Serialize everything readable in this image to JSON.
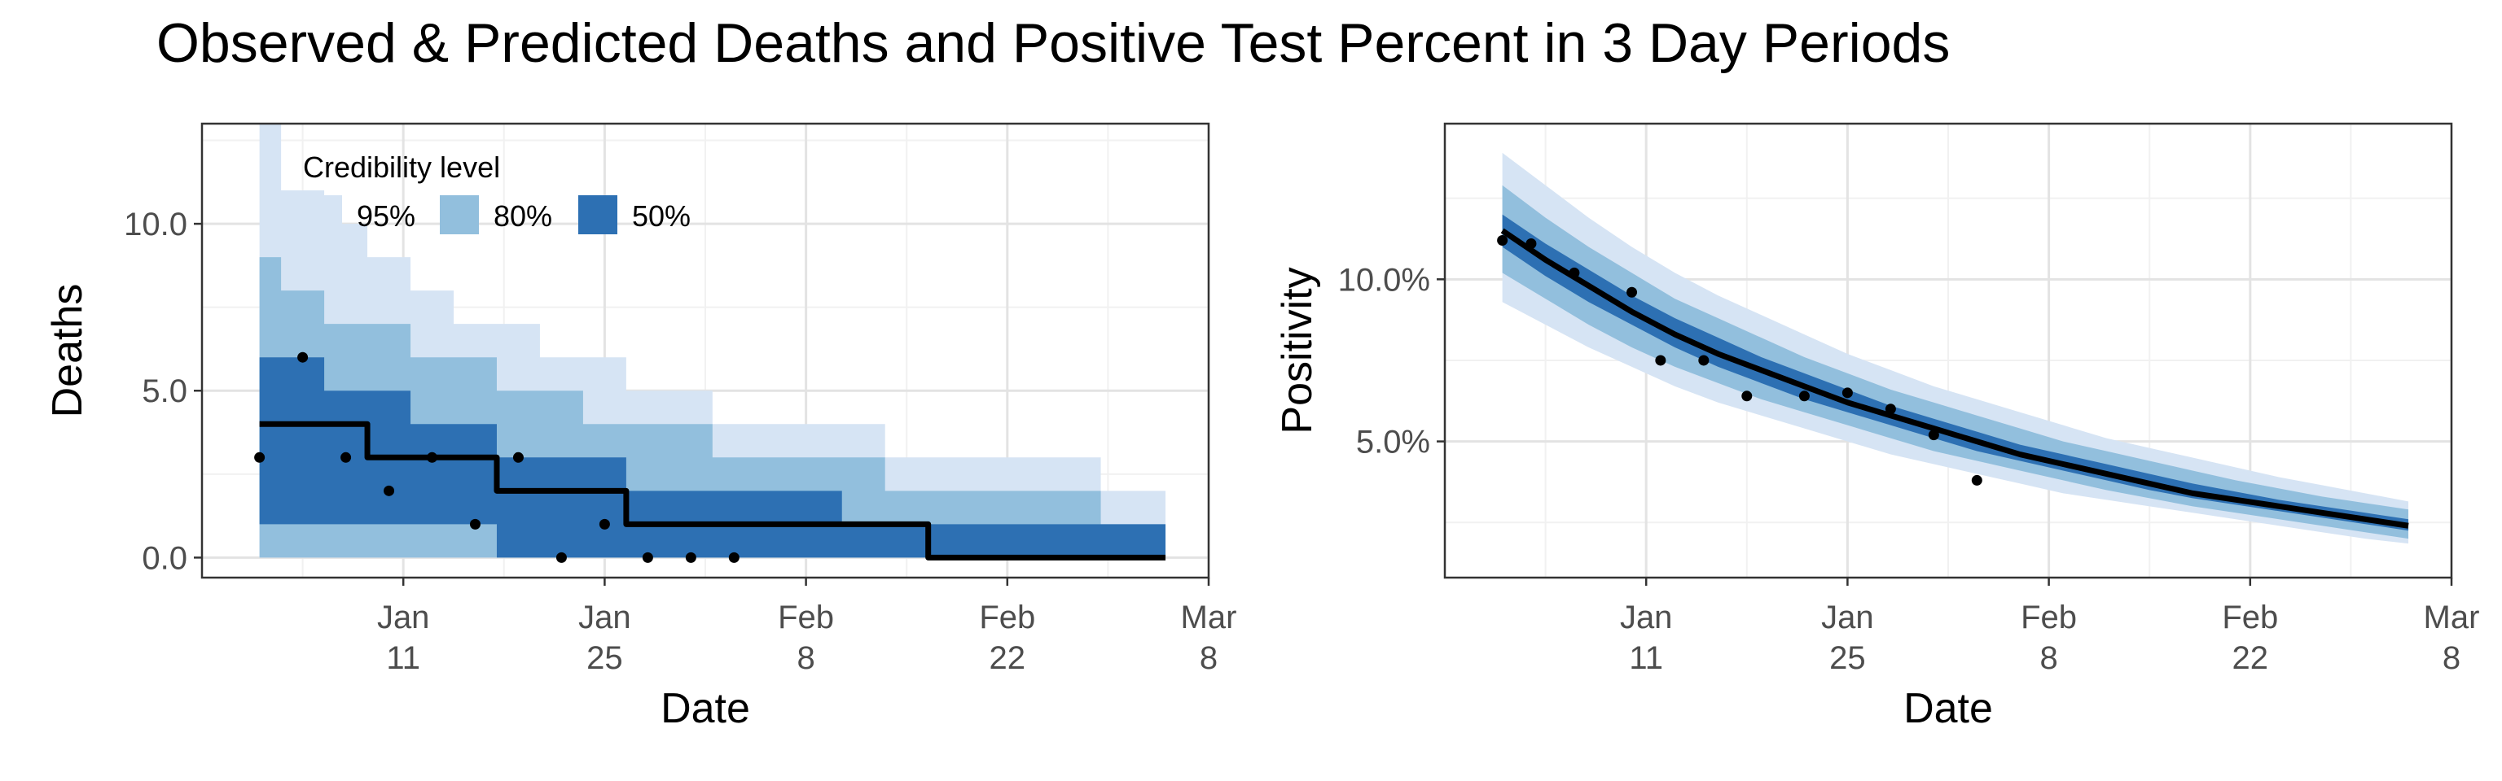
{
  "title": "Observed & Predicted Deaths and Positive Test Percent in 3 Day Periods",
  "colors": {
    "band95": "#d6e4f4",
    "band80": "#92bfdd",
    "band50": "#2d70b3",
    "line": "#000000",
    "point": "#000000",
    "grid_major": "#e3e3e3",
    "grid_minor": "#f1f1f1",
    "panel_border": "#333333"
  },
  "chart_data": [
    {
      "type": "area",
      "xlabel": "Date",
      "ylabel": "Deaths",
      "x_unit": "date",
      "xlim": [
        "2020-12-28",
        "2021-03-08"
      ],
      "ylim": [
        -0.6,
        13.0
      ],
      "grid": true,
      "x_ticks": [
        {
          "x": "2021-01-11",
          "line1": "Jan",
          "line2": "11"
        },
        {
          "x": "2021-01-25",
          "line1": "Jan",
          "line2": "25"
        },
        {
          "x": "2021-02-08",
          "line1": "Feb",
          "line2": "8"
        },
        {
          "x": "2021-02-22",
          "line1": "Feb",
          "line2": "22"
        },
        {
          "x": "2021-03-08",
          "line1": "Mar",
          "line2": "8"
        }
      ],
      "y_ticks": [
        0,
        5,
        10
      ],
      "y_tick_labels": [
        "0.0",
        "5.0",
        "10.0"
      ],
      "legend": {
        "title": "Credibility level",
        "placement": "top-left",
        "entries": [
          {
            "label": "95%",
            "band": "band95"
          },
          {
            "label": "80%",
            "band": "band80"
          },
          {
            "label": "50%",
            "band": "band50"
          }
        ]
      },
      "step": true,
      "x": [
        "2021-01-01",
        "2021-01-04",
        "2021-01-07",
        "2021-01-10",
        "2021-01-13",
        "2021-01-16",
        "2021-01-19",
        "2021-01-22",
        "2021-01-25",
        "2021-01-28",
        "2021-01-31",
        "2021-02-03",
        "2021-02-06",
        "2021-02-09",
        "2021-02-12",
        "2021-02-15",
        "2021-02-18",
        "2021-02-21",
        "2021-02-24",
        "2021-02-27",
        "2021-03-02",
        "2021-03-05"
      ],
      "median": [
        4,
        4,
        4,
        3,
        3,
        3,
        2,
        2,
        2,
        1,
        1,
        1,
        1,
        1,
        1,
        1,
        0,
        0,
        0,
        0,
        0,
        0
      ],
      "lo50": [
        1,
        1,
        1,
        1,
        1,
        1,
        0,
        0,
        0,
        0,
        0,
        0,
        0,
        0,
        0,
        0,
        0,
        0,
        0,
        0,
        0,
        0
      ],
      "hi50": [
        6,
        6,
        5,
        5,
        4,
        4,
        3,
        3,
        3,
        2,
        2,
        2,
        2,
        2,
        1,
        1,
        1,
        1,
        1,
        1,
        1,
        1
      ],
      "lo80": [
        0,
        0,
        0,
        0,
        0,
        0,
        0,
        0,
        0,
        0,
        0,
        0,
        0,
        0,
        0,
        0,
        0,
        0,
        0,
        0,
        0,
        0
      ],
      "hi80": [
        9,
        8,
        7,
        7,
        6,
        6,
        5,
        5,
        4,
        4,
        4,
        3,
        3,
        3,
        3,
        2,
        2,
        2,
        2,
        2,
        1,
        1
      ],
      "lo95": [
        0,
        0,
        0,
        0,
        0,
        0,
        0,
        0,
        0,
        0,
        0,
        0,
        0,
        0,
        0,
        0,
        0,
        0,
        0,
        0,
        0,
        0
      ],
      "hi95": [
        13,
        11,
        10,
        9,
        8,
        7,
        7,
        6,
        6,
        5,
        5,
        4,
        4,
        4,
        4,
        3,
        3,
        3,
        3,
        3,
        2,
        2
      ],
      "observed": [
        {
          "x": "2021-01-01",
          "y": 3
        },
        {
          "x": "2021-01-04",
          "y": 6
        },
        {
          "x": "2021-01-07",
          "y": 3
        },
        {
          "x": "2021-01-10",
          "y": 2
        },
        {
          "x": "2021-01-13",
          "y": 3
        },
        {
          "x": "2021-01-16",
          "y": 1
        },
        {
          "x": "2021-01-19",
          "y": 3
        },
        {
          "x": "2021-01-22",
          "y": 0
        },
        {
          "x": "2021-01-25",
          "y": 1
        },
        {
          "x": "2021-01-28",
          "y": 0
        },
        {
          "x": "2021-01-31",
          "y": 0
        },
        {
          "x": "2021-02-03",
          "y": 0
        }
      ]
    },
    {
      "type": "area",
      "xlabel": "Date",
      "ylabel": "Positivity",
      "x_unit": "date",
      "xlim": [
        "2020-12-28",
        "2021-03-08"
      ],
      "ylim": [
        0.8,
        14.8
      ],
      "grid": true,
      "x_ticks": [
        {
          "x": "2021-01-11",
          "line1": "Jan",
          "line2": "11"
        },
        {
          "x": "2021-01-25",
          "line1": "Jan",
          "line2": "25"
        },
        {
          "x": "2021-02-08",
          "line1": "Feb",
          "line2": "8"
        },
        {
          "x": "2021-02-22",
          "line1": "Feb",
          "line2": "22"
        },
        {
          "x": "2021-03-08",
          "line1": "Mar",
          "line2": "8"
        }
      ],
      "y_ticks": [
        5,
        10
      ],
      "y_tick_labels": [
        "5.0%",
        "10.0%"
      ],
      "step": false,
      "x": [
        "2021-01-01",
        "2021-01-04",
        "2021-01-07",
        "2021-01-10",
        "2021-01-13",
        "2021-01-16",
        "2021-01-19",
        "2021-01-22",
        "2021-01-25",
        "2021-01-28",
        "2021-01-31",
        "2021-02-03",
        "2021-02-06",
        "2021-02-09",
        "2021-02-12",
        "2021-02-15",
        "2021-02-18",
        "2021-02-21",
        "2021-02-24",
        "2021-02-27",
        "2021-03-02",
        "2021-03-05"
      ],
      "median": [
        11.5,
        10.6,
        9.8,
        9.0,
        8.3,
        7.7,
        7.2,
        6.7,
        6.2,
        5.8,
        5.4,
        5.0,
        4.6,
        4.3,
        4.0,
        3.7,
        3.4,
        3.2,
        3.0,
        2.8,
        2.6,
        2.4
      ],
      "lo50": [
        11.0,
        10.1,
        9.3,
        8.6,
        7.9,
        7.3,
        6.8,
        6.3,
        5.9,
        5.5,
        5.1,
        4.7,
        4.4,
        4.1,
        3.8,
        3.5,
        3.25,
        3.05,
        2.85,
        2.65,
        2.45,
        2.25
      ],
      "hi50": [
        12.0,
        11.1,
        10.3,
        9.5,
        8.8,
        8.2,
        7.6,
        7.1,
        6.6,
        6.1,
        5.7,
        5.3,
        4.9,
        4.6,
        4.3,
        4.0,
        3.7,
        3.45,
        3.2,
        3.0,
        2.8,
        2.6
      ],
      "lo80": [
        10.2,
        9.4,
        8.6,
        7.9,
        7.3,
        6.8,
        6.3,
        5.9,
        5.5,
        5.1,
        4.7,
        4.4,
        4.1,
        3.8,
        3.5,
        3.25,
        3.0,
        2.8,
        2.6,
        2.4,
        2.2,
        2.0
      ],
      "hi80": [
        12.9,
        11.9,
        11.0,
        10.2,
        9.4,
        8.8,
        8.2,
        7.6,
        7.1,
        6.6,
        6.2,
        5.8,
        5.4,
        5.0,
        4.7,
        4.4,
        4.1,
        3.8,
        3.55,
        3.3,
        3.1,
        2.9
      ],
      "lo95": [
        9.3,
        8.6,
        7.9,
        7.3,
        6.7,
        6.2,
        5.8,
        5.4,
        5.0,
        4.6,
        4.3,
        4.0,
        3.7,
        3.4,
        3.2,
        3.0,
        2.8,
        2.6,
        2.4,
        2.2,
        2.0,
        1.85
      ],
      "hi95": [
        13.9,
        12.9,
        11.9,
        11.0,
        10.2,
        9.5,
        8.9,
        8.3,
        7.7,
        7.2,
        6.7,
        6.3,
        5.9,
        5.5,
        5.1,
        4.8,
        4.5,
        4.2,
        3.9,
        3.65,
        3.4,
        3.15
      ],
      "observed": [
        {
          "x": "2021-01-01",
          "y": 11.2
        },
        {
          "x": "2021-01-03",
          "y": 11.1
        },
        {
          "x": "2021-01-06",
          "y": 10.2
        },
        {
          "x": "2021-01-10",
          "y": 9.6
        },
        {
          "x": "2021-01-12",
          "y": 7.5
        },
        {
          "x": "2021-01-15",
          "y": 7.5
        },
        {
          "x": "2021-01-18",
          "y": 6.4
        },
        {
          "x": "2021-01-22",
          "y": 6.4
        },
        {
          "x": "2021-01-25",
          "y": 6.5
        },
        {
          "x": "2021-01-28",
          "y": 6.0
        },
        {
          "x": "2021-01-31",
          "y": 5.2
        },
        {
          "x": "2021-02-03",
          "y": 3.8
        }
      ]
    }
  ]
}
